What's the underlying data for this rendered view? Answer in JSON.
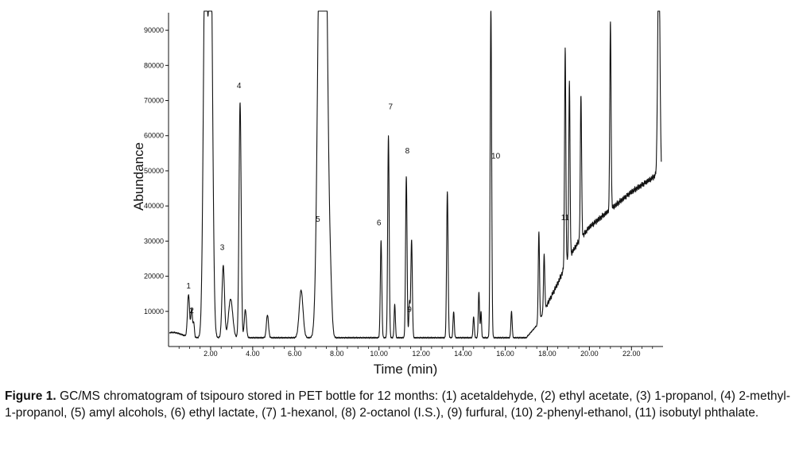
{
  "chart_data": {
    "type": "line",
    "title": "",
    "xlabel": "Time (min)",
    "ylabel": "Abundance",
    "xlim": [
      0.0,
      23.5
    ],
    "ylim": [
      0,
      95000
    ],
    "xticks": [
      2,
      4,
      6,
      8,
      10,
      12,
      14,
      16,
      18,
      20,
      22
    ],
    "xtick_labels": [
      "2.00",
      "4.00",
      "6.00",
      "8.00",
      "10.00",
      "12.00",
      "14.00",
      "16.00",
      "18.00",
      "20.00",
      "22.00"
    ],
    "yticks": [
      10000,
      20000,
      30000,
      40000,
      50000,
      60000,
      70000,
      80000,
      90000
    ],
    "ytick_labels": [
      "10000",
      "20000",
      "30000",
      "40000",
      "50000",
      "60000",
      "70000",
      "80000",
      "90000"
    ],
    "baseline": 2500,
    "peaks": [
      {
        "t": 0.95,
        "h": 12000,
        "w": 0.05
      },
      {
        "t": 1.1,
        "h": 8000,
        "w": 0.04
      },
      {
        "t": 1.2,
        "h": 4000,
        "w": 0.03
      },
      {
        "t": 1.75,
        "h": 120000,
        "w": 0.09
      },
      {
        "t": 2.0,
        "h": 120000,
        "w": 0.09
      },
      {
        "t": 2.6,
        "h": 20500,
        "w": 0.06
      },
      {
        "t": 2.95,
        "h": 11000,
        "w": 0.1
      },
      {
        "t": 3.4,
        "h": 67000,
        "w": 0.05
      },
      {
        "t": 3.65,
        "h": 8000,
        "w": 0.05
      },
      {
        "t": 4.7,
        "h": 6500,
        "w": 0.05
      },
      {
        "t": 6.3,
        "h": 13500,
        "w": 0.09
      },
      {
        "t": 7.2,
        "h": 120000,
        "w": 0.12
      },
      {
        "t": 7.45,
        "h": 120000,
        "w": 0.12
      },
      {
        "t": 7.7,
        "h": 10000,
        "w": 0.07
      },
      {
        "t": 10.1,
        "h": 27500,
        "w": 0.035
      },
      {
        "t": 10.45,
        "h": 57500,
        "w": 0.035
      },
      {
        "t": 10.75,
        "h": 9500,
        "w": 0.03
      },
      {
        "t": 11.3,
        "h": 46000,
        "w": 0.035
      },
      {
        "t": 11.45,
        "h": 10000,
        "w": 0.03
      },
      {
        "t": 11.55,
        "h": 28000,
        "w": 0.035
      },
      {
        "t": 13.25,
        "h": 41500,
        "w": 0.035
      },
      {
        "t": 13.55,
        "h": 7500,
        "w": 0.03
      },
      {
        "t": 14.5,
        "h": 6000,
        "w": 0.03
      },
      {
        "t": 14.75,
        "h": 13000,
        "w": 0.03
      },
      {
        "t": 14.85,
        "h": 7500,
        "w": 0.025
      },
      {
        "t": 15.32,
        "h": 94000,
        "w": 0.035
      },
      {
        "t": 16.3,
        "h": 7500,
        "w": 0.03
      },
      {
        "t": 17.6,
        "h": 25500,
        "w": 0.03
      },
      {
        "t": 17.85,
        "h": 16000,
        "w": 0.03
      },
      {
        "t": 18.85,
        "h": 62000,
        "w": 0.03
      },
      {
        "t": 19.05,
        "h": 50000,
        "w": 0.03
      },
      {
        "t": 19.6,
        "h": 41000,
        "w": 0.03
      },
      {
        "t": 21.0,
        "h": 53000,
        "w": 0.03
      },
      {
        "t": 23.3,
        "h": 67000,
        "w": 0.05
      }
    ],
    "drift": [
      [
        17.0,
        2500
      ],
      [
        17.5,
        6000
      ],
      [
        18.0,
        12000
      ],
      [
        18.5,
        18000
      ],
      [
        19.0,
        25000
      ],
      [
        19.5,
        30000
      ],
      [
        20.0,
        34000
      ],
      [
        21.0,
        39000
      ],
      [
        22.0,
        44000
      ],
      [
        23.0,
        48000
      ],
      [
        23.2,
        49000
      ]
    ],
    "peak_labels": [
      {
        "text": "1",
        "t": 0.95,
        "y": 16500
      },
      {
        "text": "2",
        "t": 1.1,
        "y": 9500
      },
      {
        "text": "3",
        "t": 2.55,
        "y": 27500
      },
      {
        "text": "4",
        "t": 3.35,
        "y": 73500
      },
      {
        "text": "5",
        "t": 7.1,
        "y": 35500
      },
      {
        "text": "6",
        "t": 10.0,
        "y": 34500
      },
      {
        "text": "7",
        "t": 10.55,
        "y": 67500
      },
      {
        "text": "8",
        "t": 11.35,
        "y": 55000
      },
      {
        "text": "9",
        "t": 11.45,
        "y": 9800
      },
      {
        "text": "10",
        "t": 15.55,
        "y": 53500
      },
      {
        "text": "11",
        "t": 18.85,
        "y": 36000
      }
    ]
  },
  "caption": {
    "label": "Figure 1.",
    "text": " GC/MS chromatogram of tsipouro stored in PET bottle for 12 months: (1) acetaldehyde, (2) ethyl acetate, (3) 1-propanol, (4) 2-methyl-1-propanol, (5) amyl alcohols, (6) ethyl lactate, (7) 1-hexanol, (8) 2-octanol (I.S.), (9) furfural, (10) 2-phenyl-ethanol, (11) isobutyl phthalate."
  }
}
